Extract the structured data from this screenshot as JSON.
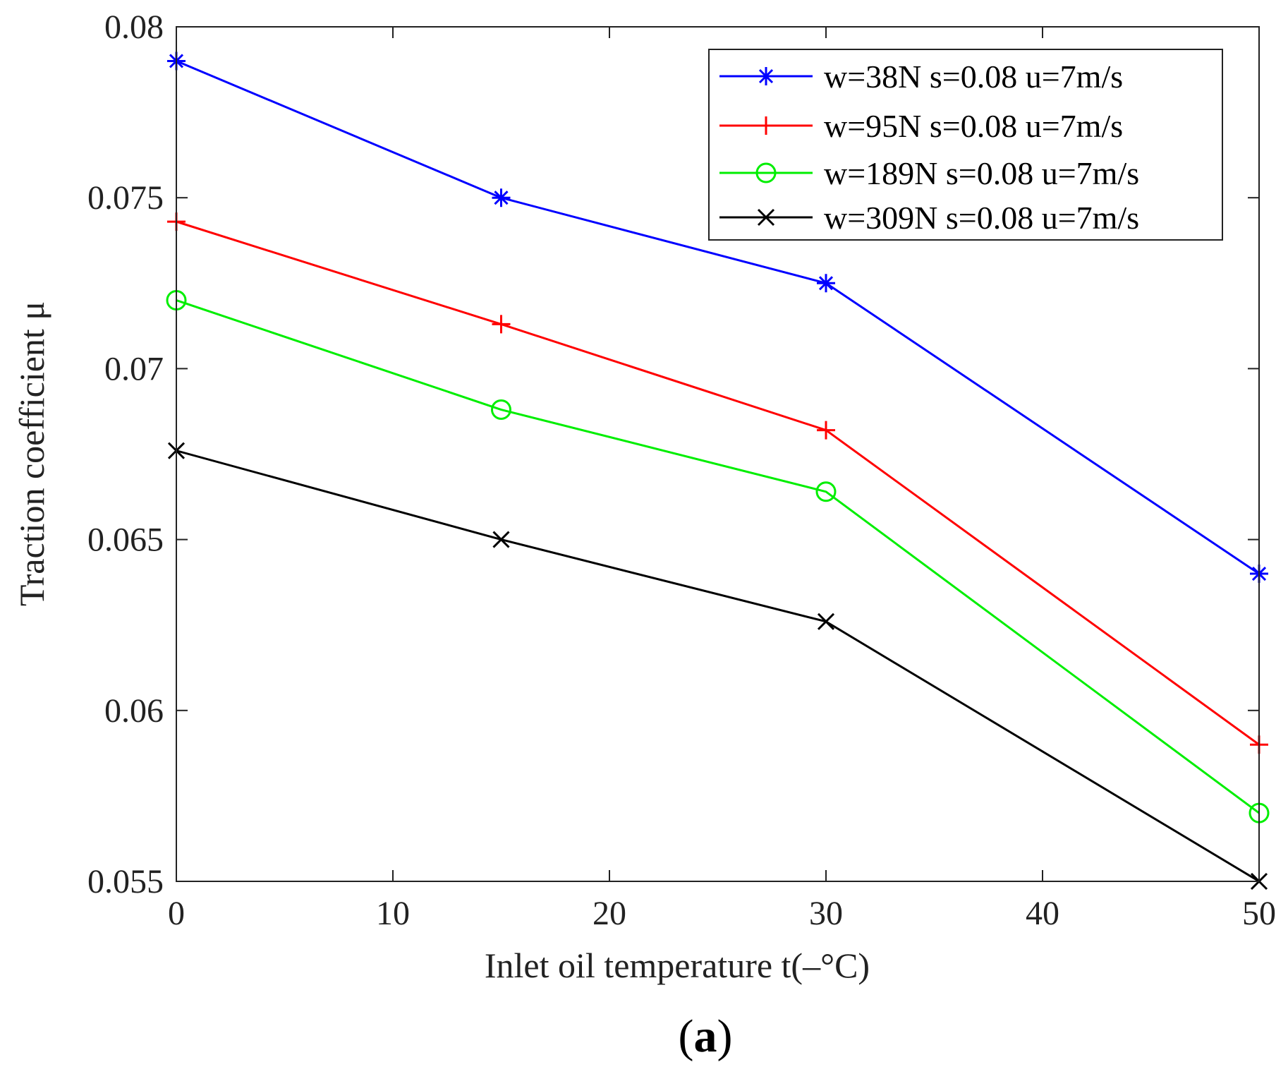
{
  "chart_data": {
    "type": "line",
    "title": "",
    "xlabel": "Inlet oil temperature   t(–°C)",
    "ylabel": "Traction coefficient   μ",
    "xlim": [
      0,
      50
    ],
    "ylim": [
      0.055,
      0.08
    ],
    "xticks": [
      0,
      10,
      20,
      30,
      40,
      50
    ],
    "xtick_labels": [
      "0",
      "10",
      "20",
      "30",
      "40",
      "50"
    ],
    "yticks": [
      0.055,
      0.06,
      0.065,
      0.07,
      0.075,
      0.08
    ],
    "ytick_labels": [
      "0.055",
      "0.06",
      "0.065",
      "0.07",
      "0.075",
      "0.08"
    ],
    "grid": false,
    "legend_position": "top-right",
    "x": [
      0,
      15,
      30,
      50
    ],
    "series": [
      {
        "name": "w=38N s=0.08 u=7m/s",
        "color": "#0000ff",
        "marker": "asterisk",
        "values": [
          0.079,
          0.075,
          0.0725,
          0.064
        ]
      },
      {
        "name": "w=95N s=0.08 u=7m/s",
        "color": "#ff0000",
        "marker": "plus",
        "values": [
          0.0743,
          0.0713,
          0.0682,
          0.059
        ]
      },
      {
        "name": "w=189N s=0.08 u=7m/s",
        "color": "#00ee00",
        "marker": "circle",
        "values": [
          0.072,
          0.0688,
          0.0664,
          0.057
        ]
      },
      {
        "name": "w=309N s=0.08 u=7m/s",
        "color": "#000000",
        "marker": "cross",
        "values": [
          0.0676,
          0.065,
          0.0626,
          0.055
        ]
      }
    ]
  },
  "caption": {
    "open": "(",
    "letter": "a",
    "close": ")"
  }
}
